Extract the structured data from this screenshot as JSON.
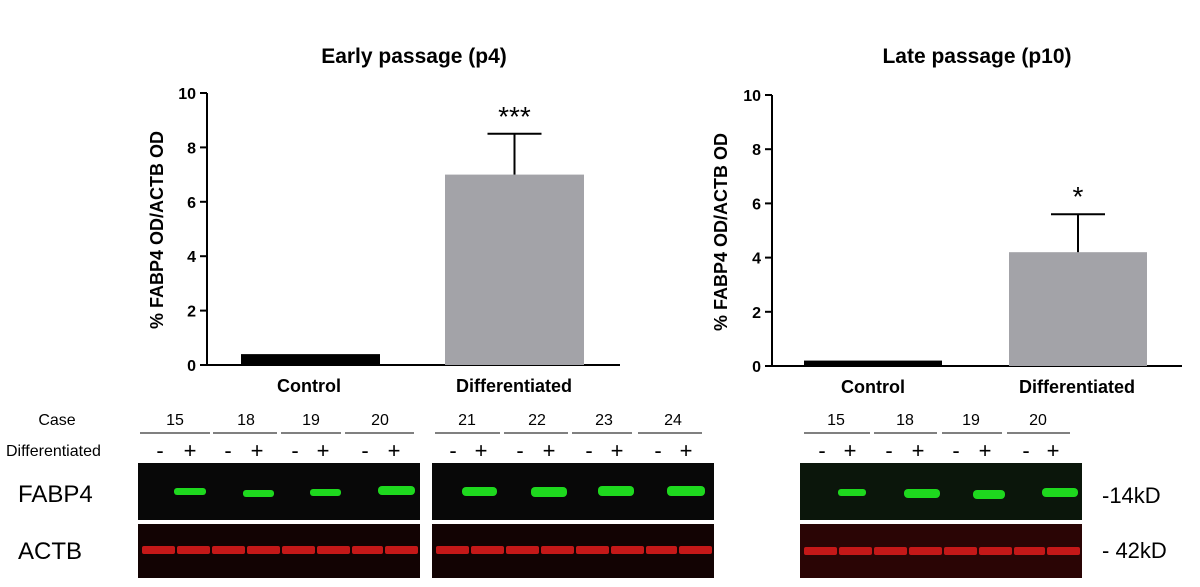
{
  "chart_data": [
    {
      "type": "bar",
      "title": "Early passage (p4)",
      "xlabel": "",
      "ylabel": "% FABP4 OD/ACTB OD",
      "ylim": [
        0,
        10
      ],
      "yticks": [
        "0",
        "2",
        "4",
        "6",
        "8",
        "10"
      ],
      "categories": [
        "Control",
        "Differentiated"
      ],
      "values": [
        0.4,
        7.0
      ],
      "errors": [
        0,
        1.5
      ],
      "bar_colors": [
        "#000000",
        "#a3a3a8"
      ],
      "significance": [
        "",
        "***"
      ]
    },
    {
      "type": "bar",
      "title": "Late passage (p10)",
      "xlabel": "",
      "ylabel": "% FABP4 OD/ACTB OD",
      "ylim": [
        0,
        10
      ],
      "yticks": [
        "0",
        "2",
        "4",
        "6",
        "8",
        "10"
      ],
      "categories": [
        "Control",
        "Differentiated"
      ],
      "values": [
        0.2,
        4.2
      ],
      "errors": [
        0,
        1.4
      ],
      "bar_colors": [
        "#000000",
        "#a3a3a8"
      ],
      "significance": [
        "",
        "*"
      ]
    }
  ],
  "blot": {
    "case_label": "Case",
    "differentiated_label": "Differentiated",
    "minus": "-",
    "plus": "+",
    "fabp4_label": "FABP4",
    "actb_label": "ACTB",
    "fabp4_kd": "-14kD",
    "actb_kd": "- 42kD",
    "early_group1_cases": [
      "15",
      "18",
      "19",
      "20"
    ],
    "early_group2_cases": [
      "21",
      "22",
      "23",
      "24"
    ],
    "late_cases": [
      "15",
      "18",
      "19",
      "20"
    ],
    "fabp4_color": "#1ed81e",
    "actb_color": "#c41818"
  }
}
